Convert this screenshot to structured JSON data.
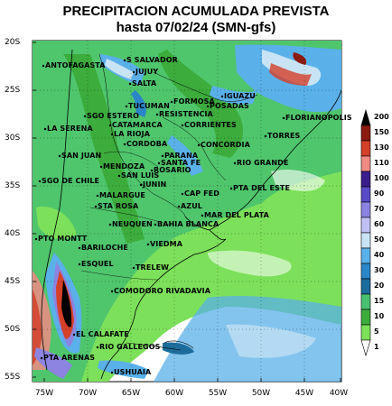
{
  "title_line1": "PRECIPITACION ACUMULADA PREVISTA",
  "title_line2": "hasta 07/02/24 (SMN-gfs)",
  "lat_ticks": [
    "20S",
    "25S",
    "30S",
    "35S",
    "40S",
    "45S",
    "50S",
    "55S"
  ],
  "lon_ticks": [
    "75W",
    "70W",
    "65W",
    "60W",
    "55W",
    "50W",
    "45W",
    "40W"
  ],
  "cities": [
    "ANTOFAGASTA",
    "S SALVADOR",
    "JUJUY",
    "SALTA",
    "TUCUMAN",
    "SGO ESTERO",
    "CATAMARCA",
    "LA RIOJA",
    "LA SERENA",
    "IGUAZU",
    "POSADAS",
    "FORMOSA",
    "RESISTENCIA",
    "CORRIENTES",
    "FLORIANOPOLIS",
    "TORRES",
    "CORDOBA",
    "PARANA",
    "CONCORDIA",
    "SANTA FE",
    "ROSARIO",
    "SAN JUAN",
    "MENDOZA",
    "SAN LUIS",
    "RIO GRANDE",
    "SGO DE CHILE",
    "JUNIN",
    "CAP FED",
    "PTA DEL ESTE",
    "MALARGUE",
    "STA ROSA",
    "AZUL",
    "MAR DEL PLATA",
    "NEUQUEN",
    "BAHIA BLANCA",
    "PTO MONTT",
    "BARILOCHE",
    "VIEDMA",
    "ESQUEL",
    "TRELEW",
    "COMODORO RIVADAVIA",
    "EL CALAFATE",
    "RIO GALLEGOS",
    "PTA ARENAS",
    "USHUAIA"
  ],
  "legend": {
    "levels": [
      "200",
      "150",
      "130",
      "110",
      "100",
      "90",
      "70",
      "60",
      "50",
      "40",
      "30",
      "20",
      "15",
      "10",
      "5",
      "1"
    ],
    "colors": [
      "#000000",
      "#8b1a10",
      "#d4402a",
      "#f08a84",
      "#3a1e8c",
      "#5a4ac8",
      "#8c84e0",
      "#c0c0f4",
      "#c8e4f4",
      "#5ab0e8",
      "#2a86c8",
      "#1c6c9c",
      "#48c070",
      "#3cac3c",
      "#7ce05a",
      "#ffffff"
    ]
  }
}
